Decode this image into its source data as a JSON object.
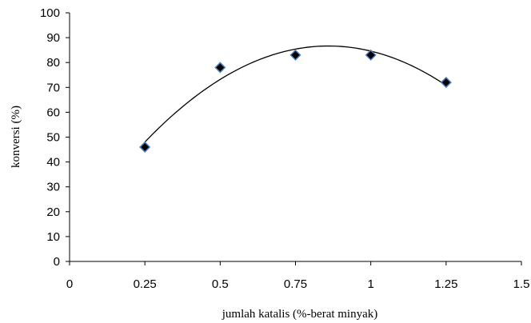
{
  "chart_data": {
    "type": "scatter",
    "title": "",
    "xlabel": "jumlah katalis (%-berat minyak)",
    "ylabel": "konversi (%)",
    "xlim": [
      0,
      1.5
    ],
    "ylim": [
      0,
      100
    ],
    "x_ticks": [
      0,
      0.25,
      0.5,
      0.75,
      1,
      1.25,
      1.5
    ],
    "x_tick_labels": [
      "0",
      "0.25",
      "0.5",
      "0.75",
      "1",
      "1.25",
      "1.5"
    ],
    "y_ticks": [
      0,
      10,
      20,
      30,
      40,
      50,
      60,
      70,
      80,
      90,
      100
    ],
    "y_tick_labels": [
      "0",
      "10",
      "20",
      "30",
      "40",
      "50",
      "60",
      "70",
      "80",
      "90",
      "100"
    ],
    "grid": false,
    "legend": "none",
    "series": [
      {
        "marker": "diamond",
        "color": "#000000",
        "edge_color": "#4a7ebb",
        "x": [
          0.25,
          0.5,
          0.75,
          1,
          1.25
        ],
        "y": [
          46,
          78,
          83,
          83,
          72
        ]
      }
    ],
    "trendline": {
      "type": "polynomial",
      "order": 2,
      "color": "#000000"
    }
  }
}
